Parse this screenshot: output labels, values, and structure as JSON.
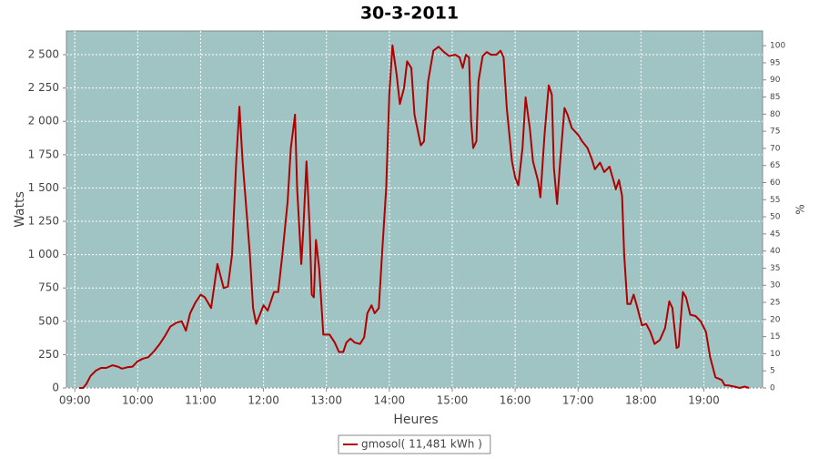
{
  "chart_data": {
    "type": "line",
    "title": "30-3-2011",
    "x_label": "Heures",
    "y_label": "Watts",
    "y2_label": "%",
    "x": [
      "09:04",
      "09:08",
      "09:11",
      "09:15",
      "09:20",
      "09:25",
      "09:30",
      "09:36",
      "09:41",
      "09:45",
      "09:50",
      "09:55",
      "10:00",
      "10:05",
      "10:10",
      "10:16",
      "10:21",
      "10:26",
      "10:31",
      "10:37",
      "10:42",
      "10:46",
      "10:50",
      "10:55",
      "11:00",
      "11:04",
      "11:10",
      "11:16",
      "11:22",
      "11:26",
      "11:30",
      "11:34",
      "11:37",
      "11:40",
      "11:44",
      "11:47",
      "11:50",
      "11:53",
      "11:57",
      "12:00",
      "12:04",
      "12:10",
      "12:14",
      "12:18",
      "12:23",
      "12:26",
      "12:30",
      "12:32",
      "12:36",
      "12:38",
      "12:41",
      "12:44",
      "12:46",
      "12:48",
      "12:50",
      "12:53",
      "12:57",
      "13:03",
      "13:08",
      "13:12",
      "13:16",
      "13:19",
      "13:23",
      "13:27",
      "13:32",
      "13:36",
      "13:39",
      "13:43",
      "13:46",
      "13:50",
      "13:53",
      "13:57",
      "14:00",
      "14:03",
      "14:07",
      "14:10",
      "14:14",
      "14:17",
      "14:21",
      "14:24",
      "14:30",
      "14:33",
      "14:37",
      "14:42",
      "14:47",
      "14:52",
      "14:57",
      "15:03",
      "15:07",
      "15:10",
      "15:13",
      "15:16",
      "15:18",
      "15:20",
      "15:23",
      "15:25",
      "15:29",
      "15:33",
      "15:37",
      "15:42",
      "15:46",
      "15:49",
      "15:52",
      "15:57",
      "16:00",
      "16:03",
      "16:07",
      "16:10",
      "16:14",
      "16:17",
      "16:22",
      "16:24",
      "16:28",
      "16:32",
      "16:35",
      "16:37",
      "16:40",
      "16:43",
      "16:47",
      "16:50",
      "16:54",
      "17:00",
      "17:04",
      "17:09",
      "17:13",
      "17:16",
      "17:21",
      "17:25",
      "17:30",
      "17:34",
      "17:36",
      "17:39",
      "17:42",
      "17:44",
      "17:47",
      "17:50",
      "17:53",
      "17:56",
      "18:01",
      "18:05",
      "18:09",
      "18:13",
      "18:18",
      "18:23",
      "18:27",
      "18:30",
      "18:34",
      "18:36",
      "18:40",
      "18:43",
      "18:47",
      "18:52",
      "18:57",
      "19:02",
      "19:06",
      "19:11",
      "19:17",
      "19:20",
      "19:23",
      "19:29",
      "19:34",
      "19:39",
      "19:43"
    ],
    "series": [
      {
        "name": "gmosol( 11,481 kWh )",
        "color": "#b00000",
        "values": [
          0,
          0,
          30,
          90,
          130,
          150,
          150,
          170,
          160,
          145,
          155,
          160,
          200,
          220,
          230,
          280,
          330,
          390,
          460,
          490,
          500,
          430,
          560,
          640,
          700,
          680,
          600,
          930,
          750,
          760,
          1000,
          1700,
          2110,
          1700,
          1300,
          1000,
          600,
          480,
          560,
          620,
          580,
          720,
          720,
          1000,
          1400,
          1800,
          2050,
          1500,
          930,
          1200,
          1700,
          1200,
          700,
          680,
          1110,
          900,
          400,
          400,
          340,
          270,
          270,
          340,
          370,
          340,
          330,
          380,
          560,
          620,
          560,
          600,
          1000,
          1500,
          2200,
          2570,
          2350,
          2130,
          2250,
          2450,
          2400,
          2050,
          1820,
          1850,
          2300,
          2530,
          2560,
          2520,
          2490,
          2500,
          2480,
          2400,
          2500,
          2480,
          2000,
          1800,
          1850,
          2300,
          2490,
          2520,
          2500,
          2500,
          2530,
          2480,
          2100,
          1700,
          1580,
          1520,
          1800,
          2180,
          1950,
          1700,
          1550,
          1430,
          1900,
          2270,
          2200,
          1650,
          1380,
          1700,
          2100,
          2050,
          1950,
          1900,
          1850,
          1800,
          1720,
          1640,
          1690,
          1620,
          1660,
          1550,
          1490,
          1560,
          1440,
          1000,
          630,
          630,
          700,
          620,
          470,
          480,
          420,
          330,
          360,
          450,
          650,
          600,
          300,
          310,
          720,
          680,
          550,
          540,
          500,
          420,
          230,
          80,
          60,
          20,
          20,
          10,
          0,
          10,
          0
        ]
      }
    ],
    "xlim": [
      "08:52",
      "19:56"
    ],
    "xticks": [
      "09:00",
      "10:00",
      "11:00",
      "12:00",
      "13:00",
      "14:00",
      "15:00",
      "16:00",
      "17:00",
      "18:00",
      "19:00"
    ],
    "ylim": [
      0,
      2678
    ],
    "yticks": [
      0,
      250,
      500,
      750,
      {
        "value": 1000,
        "label": "1 000"
      },
      {
        "value": 1250,
        "label": "1 250"
      },
      {
        "value": 1500,
        "label": "1 500"
      },
      {
        "value": 1750,
        "label": "1 750"
      },
      {
        "value": 2000,
        "label": "2 000"
      },
      {
        "value": 2250,
        "label": "2 250"
      },
      {
        "value": 2500,
        "label": "2 500"
      }
    ],
    "y2lim": [
      0,
      104.3
    ],
    "y2ticks": [
      0,
      5,
      10,
      15,
      20,
      25,
      30,
      35,
      40,
      45,
      50,
      55,
      60,
      65,
      70,
      75,
      80,
      85,
      90,
      95,
      100
    ],
    "grid": true,
    "legend": "bottom"
  }
}
